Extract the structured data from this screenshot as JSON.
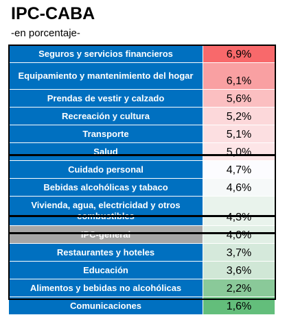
{
  "title": "IPC-CABA",
  "subtitle": "-en porcentaje-",
  "colors": {
    "category_bg": "#0070c0",
    "general_bg": "#a6a6a6",
    "category_text": "#ffffff"
  },
  "chart_data": {
    "type": "table",
    "title": "IPC-CABA",
    "subtitle": "-en porcentaje-",
    "unit": "%",
    "rows": [
      {
        "label": "Seguros y servicios financieros",
        "display": "6,9%",
        "value": 6.9,
        "color": "#f8696b"
      },
      {
        "label": "Equipamiento y mantenimiento del hogar",
        "display": "6,1%",
        "value": 6.1,
        "color": "#f9a0a2"
      },
      {
        "label": "Prendas de vestir y calzado",
        "display": "5,6%",
        "value": 5.6,
        "color": "#fbbfc1"
      },
      {
        "label": "Recreación y cultura",
        "display": "5,2%",
        "value": 5.2,
        "color": "#fcd8da"
      },
      {
        "label": "Transporte",
        "display": "5,1%",
        "value": 5.1,
        "color": "#fcdfe1"
      },
      {
        "label": "Salud",
        "display": "5,0%",
        "value": 5.0,
        "color": "#fde5e7"
      },
      {
        "label": "Cuidado personal",
        "display": "4,7%",
        "value": 4.7,
        "color": "#fcfcff"
      },
      {
        "label": "Bebidas alcohólicas y tabaco",
        "display": "4,6%",
        "value": 4.6,
        "color": "#f6f9f9"
      },
      {
        "label": "Vivienda, agua, electricidad y otros combustibles",
        "display": "4,3%",
        "value": 4.3,
        "color": "#e9f3ec"
      },
      {
        "label": "IPC-general",
        "display": "4,0%",
        "value": 4.0,
        "color": "#e1efe5",
        "general": true
      },
      {
        "label": "Restaurantes y hoteles",
        "display": "3,7%",
        "value": 3.7,
        "color": "#d5e9db"
      },
      {
        "label": "Educación",
        "display": "3,6%",
        "value": 3.6,
        "color": "#d0e7d6"
      },
      {
        "label": "Alimentos y bebidas no alcohólicas",
        "display": "2,2%",
        "value": 2.2,
        "color": "#8ac999"
      },
      {
        "label": "Comunicaciones",
        "display": "1,6%",
        "value": 1.6,
        "color": "#63be7b"
      }
    ]
  }
}
